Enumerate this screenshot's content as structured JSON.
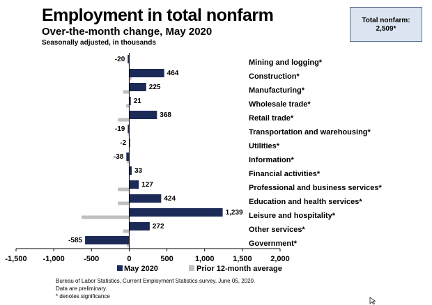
{
  "header": {
    "title": "Employment in total nonfarm",
    "subtitle": "Over-the-month change, May 2020",
    "note": "Seasonally adjusted, in thousands"
  },
  "total_box": {
    "line1": "Total nonfarm:",
    "line2": "2,509*"
  },
  "source": {
    "line1": "Bureau of Labor Statistics, Current Employment Statistics survey, June 05, 2020.",
    "line2": "Data are preliminary.",
    "line3": "* denotes significance"
  },
  "colors": {
    "current": "#1b2a57",
    "prior": "#bfbfbf"
  },
  "chart_data": {
    "type": "bar",
    "orientation": "horizontal",
    "categories": [
      "Mining and logging*",
      "Construction*",
      "Manufacturing*",
      "Wholesale trade*",
      "Retail trade*",
      "Transportation and warehousing*",
      "Utilities*",
      "Information*",
      "Financial activities*",
      "Professional and business services*",
      "Education and health services*",
      "Leisure and hospitality*",
      "Other services*",
      "Government*"
    ],
    "series": [
      {
        "name": "May 2020",
        "values": [
          -20,
          464,
          225,
          21,
          368,
          -19,
          -2,
          -38,
          33,
          127,
          424,
          1239,
          272,
          -585
        ],
        "labels": [
          "-20",
          "464",
          "225",
          "21",
          "368",
          "-19",
          "-2",
          "-38",
          "33",
          "127",
          "424",
          "1,239",
          "272",
          "-585"
        ]
      },
      {
        "name": "Prior 12-month average",
        "values": [
          -8,
          30,
          -80,
          -40,
          -150,
          -20,
          -3,
          -30,
          10,
          -150,
          -150,
          -630,
          -80,
          -30
        ]
      }
    ],
    "xlim": [
      -1500,
      2000
    ],
    "xticks": [
      -1500,
      -1000,
      -500,
      0,
      500,
      1000,
      1500,
      2000
    ],
    "xtick_labels": [
      "-1,500",
      "-1,000",
      "-500",
      "0",
      "500",
      "1,000",
      "1,500",
      "2,000"
    ],
    "legend_position": "bottom",
    "grid": false
  }
}
